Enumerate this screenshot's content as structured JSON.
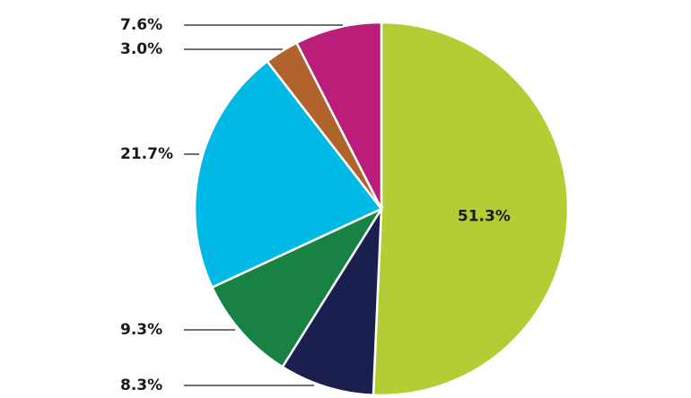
{
  "chart_data": {
    "type": "pie",
    "values": [
      51.3,
      8.3,
      9.3,
      21.7,
      3.0,
      7.6
    ],
    "value_labels": [
      "51.3%",
      "8.3%",
      "9.3%",
      "21.7%",
      "3.0%",
      "7.6%"
    ],
    "colors": [
      "#b5cd34",
      "#1b1f4e",
      "#188244",
      "#00b9e4",
      "#b0632a",
      "#bb1e78"
    ]
  }
}
